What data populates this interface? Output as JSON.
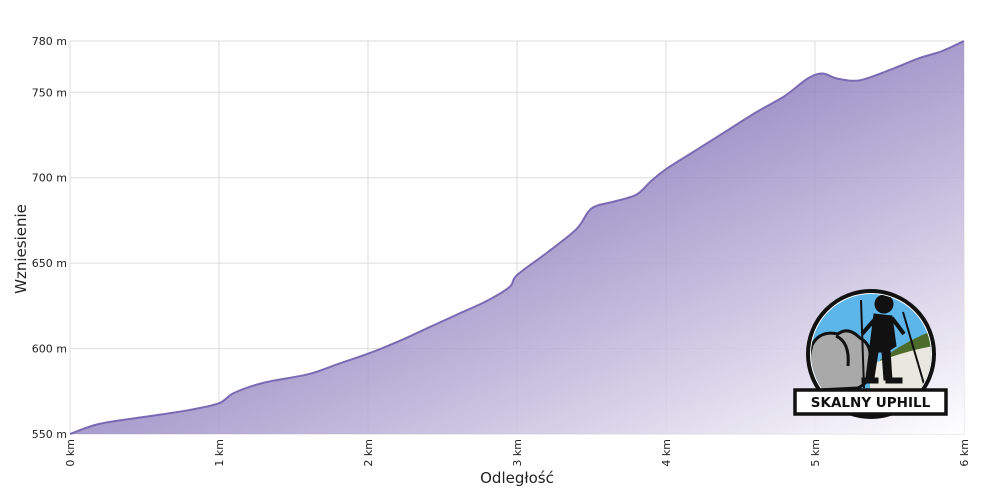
{
  "chart_data": {
    "type": "area",
    "title": "",
    "xlabel": "Odległość",
    "ylabel": "Wzniesienie",
    "xlim": [
      0,
      6
    ],
    "ylim": [
      550,
      780
    ],
    "x_ticks": [
      {
        "value": 0,
        "label": "0 km"
      },
      {
        "value": 1,
        "label": "1 km"
      },
      {
        "value": 2,
        "label": "2 km"
      },
      {
        "value": 3,
        "label": "3 km"
      },
      {
        "value": 4,
        "label": "4 km"
      },
      {
        "value": 5,
        "label": "5 km"
      },
      {
        "value": 6,
        "label": "6 km"
      }
    ],
    "y_ticks": [
      {
        "value": 550,
        "label": "550 m"
      },
      {
        "value": 600,
        "label": "600 m"
      },
      {
        "value": 650,
        "label": "650 m"
      },
      {
        "value": 700,
        "label": "700 m"
      },
      {
        "value": 750,
        "label": "750 m"
      },
      {
        "value": 780,
        "label": "780 m"
      }
    ],
    "grid": true,
    "fill_color": "#7b6ab3",
    "series": [
      {
        "x": [
          0,
          0.2,
          0.5,
          0.8,
          1.0,
          1.1,
          1.3,
          1.6,
          1.8,
          2.0,
          2.2,
          2.4,
          2.6,
          2.8,
          2.95,
          3.0,
          3.2,
          3.4,
          3.5,
          3.65,
          3.8,
          3.9,
          4.0,
          4.2,
          4.4,
          4.6,
          4.8,
          4.95,
          5.05,
          5.15,
          5.3,
          5.5,
          5.7,
          5.85,
          6.0
        ],
        "y": [
          550,
          556,
          560,
          564,
          568,
          574,
          580,
          585,
          591,
          597,
          604,
          612,
          620,
          628,
          636,
          643,
          656,
          670,
          682,
          686,
          690,
          698,
          705,
          716,
          727,
          738,
          748,
          758,
          761,
          758,
          757,
          763,
          770,
          774,
          780
        ]
      }
    ]
  },
  "logo": {
    "text": "SKALNY UPHILL",
    "colors": {
      "sky": "#5cb6ea",
      "grass": "#4d6b2b",
      "rock": "#a9a9a9",
      "outline": "#111111"
    }
  }
}
